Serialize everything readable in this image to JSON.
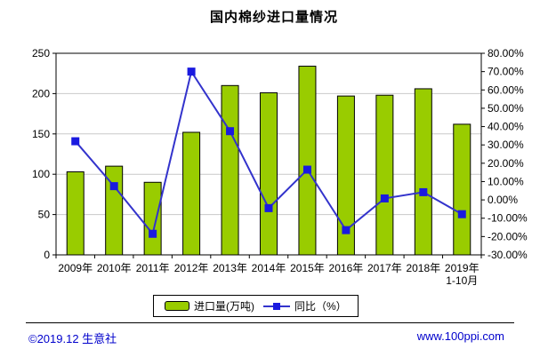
{
  "title": "国内棉纱进口量情况",
  "chart_data": {
    "type": "bar",
    "subtype": "bar-line-combo",
    "title": "国内棉纱进口量情况",
    "categories": [
      "2009年",
      "2010年",
      "2011年",
      "2012年",
      "2013年",
      "2014年",
      "2015年",
      "2016年",
      "2017年",
      "2018年",
      "2019年"
    ],
    "last_category_subline": "1-10月",
    "series": [
      {
        "name": "进口量(万吨)",
        "type": "bar",
        "axis": "left",
        "color": "#99CC00",
        "border_color": "#000000",
        "values": [
          103,
          110,
          90,
          152,
          210,
          201,
          234,
          197,
          198,
          206,
          162
        ]
      },
      {
        "name": "同比（%）",
        "type": "line",
        "axis": "right",
        "color": "#3333CC",
        "marker_color": "#1A1AE0",
        "values": [
          32,
          7.5,
          -18.5,
          70,
          37.5,
          -4.5,
          16.5,
          -16.5,
          0.8,
          4.2,
          -7.8
        ]
      }
    ],
    "left_axis": {
      "min": 0,
      "max": 250,
      "step": 50,
      "labels_top_down": [
        "250",
        "200",
        "150",
        "100",
        "50",
        "0"
      ]
    },
    "right_axis": {
      "min": -30,
      "max": 80,
      "step": 10,
      "labels_top_down": [
        "80.00%",
        "70.00%",
        "60.00%",
        "50.00%",
        "40.00%",
        "30.00%",
        "20.00%",
        "10.00%",
        "0.00%",
        "-10.00%",
        "-20.00%",
        "-30.00%"
      ]
    },
    "grid": true,
    "gridline_color": "#C9C9C9",
    "legend_position": "bottom"
  },
  "legend": {
    "bar_label": "进口量(万吨)",
    "line_label": "同比（%）"
  },
  "footer": {
    "copyright": "©2019.12 生意社",
    "website": "www.100ppi.com",
    "link_color": "#0000CC"
  }
}
